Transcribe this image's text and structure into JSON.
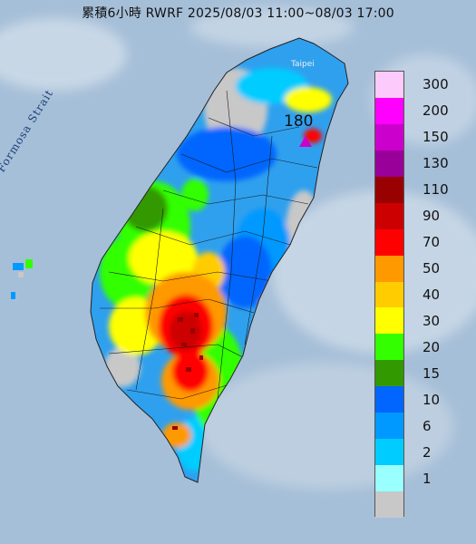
{
  "title": "累積6小時 RWRF 2025/08/03 11:00~08/03 17:00",
  "strait_label": "Formosa Strait",
  "city_label": "Taipei",
  "max_value_label": "180",
  "legend": {
    "levels": [
      {
        "label": "300",
        "color": "#fccbfc"
      },
      {
        "label": "200",
        "color": "#ff00ff"
      },
      {
        "label": "150",
        "color": "#cc00cc"
      },
      {
        "label": "130",
        "color": "#990099"
      },
      {
        "label": "110",
        "color": "#990000"
      },
      {
        "label": "90",
        "color": "#cc0000"
      },
      {
        "label": "70",
        "color": "#ff0000"
      },
      {
        "label": "50",
        "color": "#ff9900"
      },
      {
        "label": "40",
        "color": "#ffcc00"
      },
      {
        "label": "30",
        "color": "#ffff00"
      },
      {
        "label": "20",
        "color": "#33ff00"
      },
      {
        "label": "15",
        "color": "#339900"
      },
      {
        "label": "10",
        "color": "#0066ff"
      },
      {
        "label": "6",
        "color": "#0099ff"
      },
      {
        "label": "2",
        "color": "#00ccff"
      },
      {
        "label": "1",
        "color": "#99ffff"
      },
      {
        "label": "",
        "color": "#c8c8c8"
      }
    ]
  }
}
